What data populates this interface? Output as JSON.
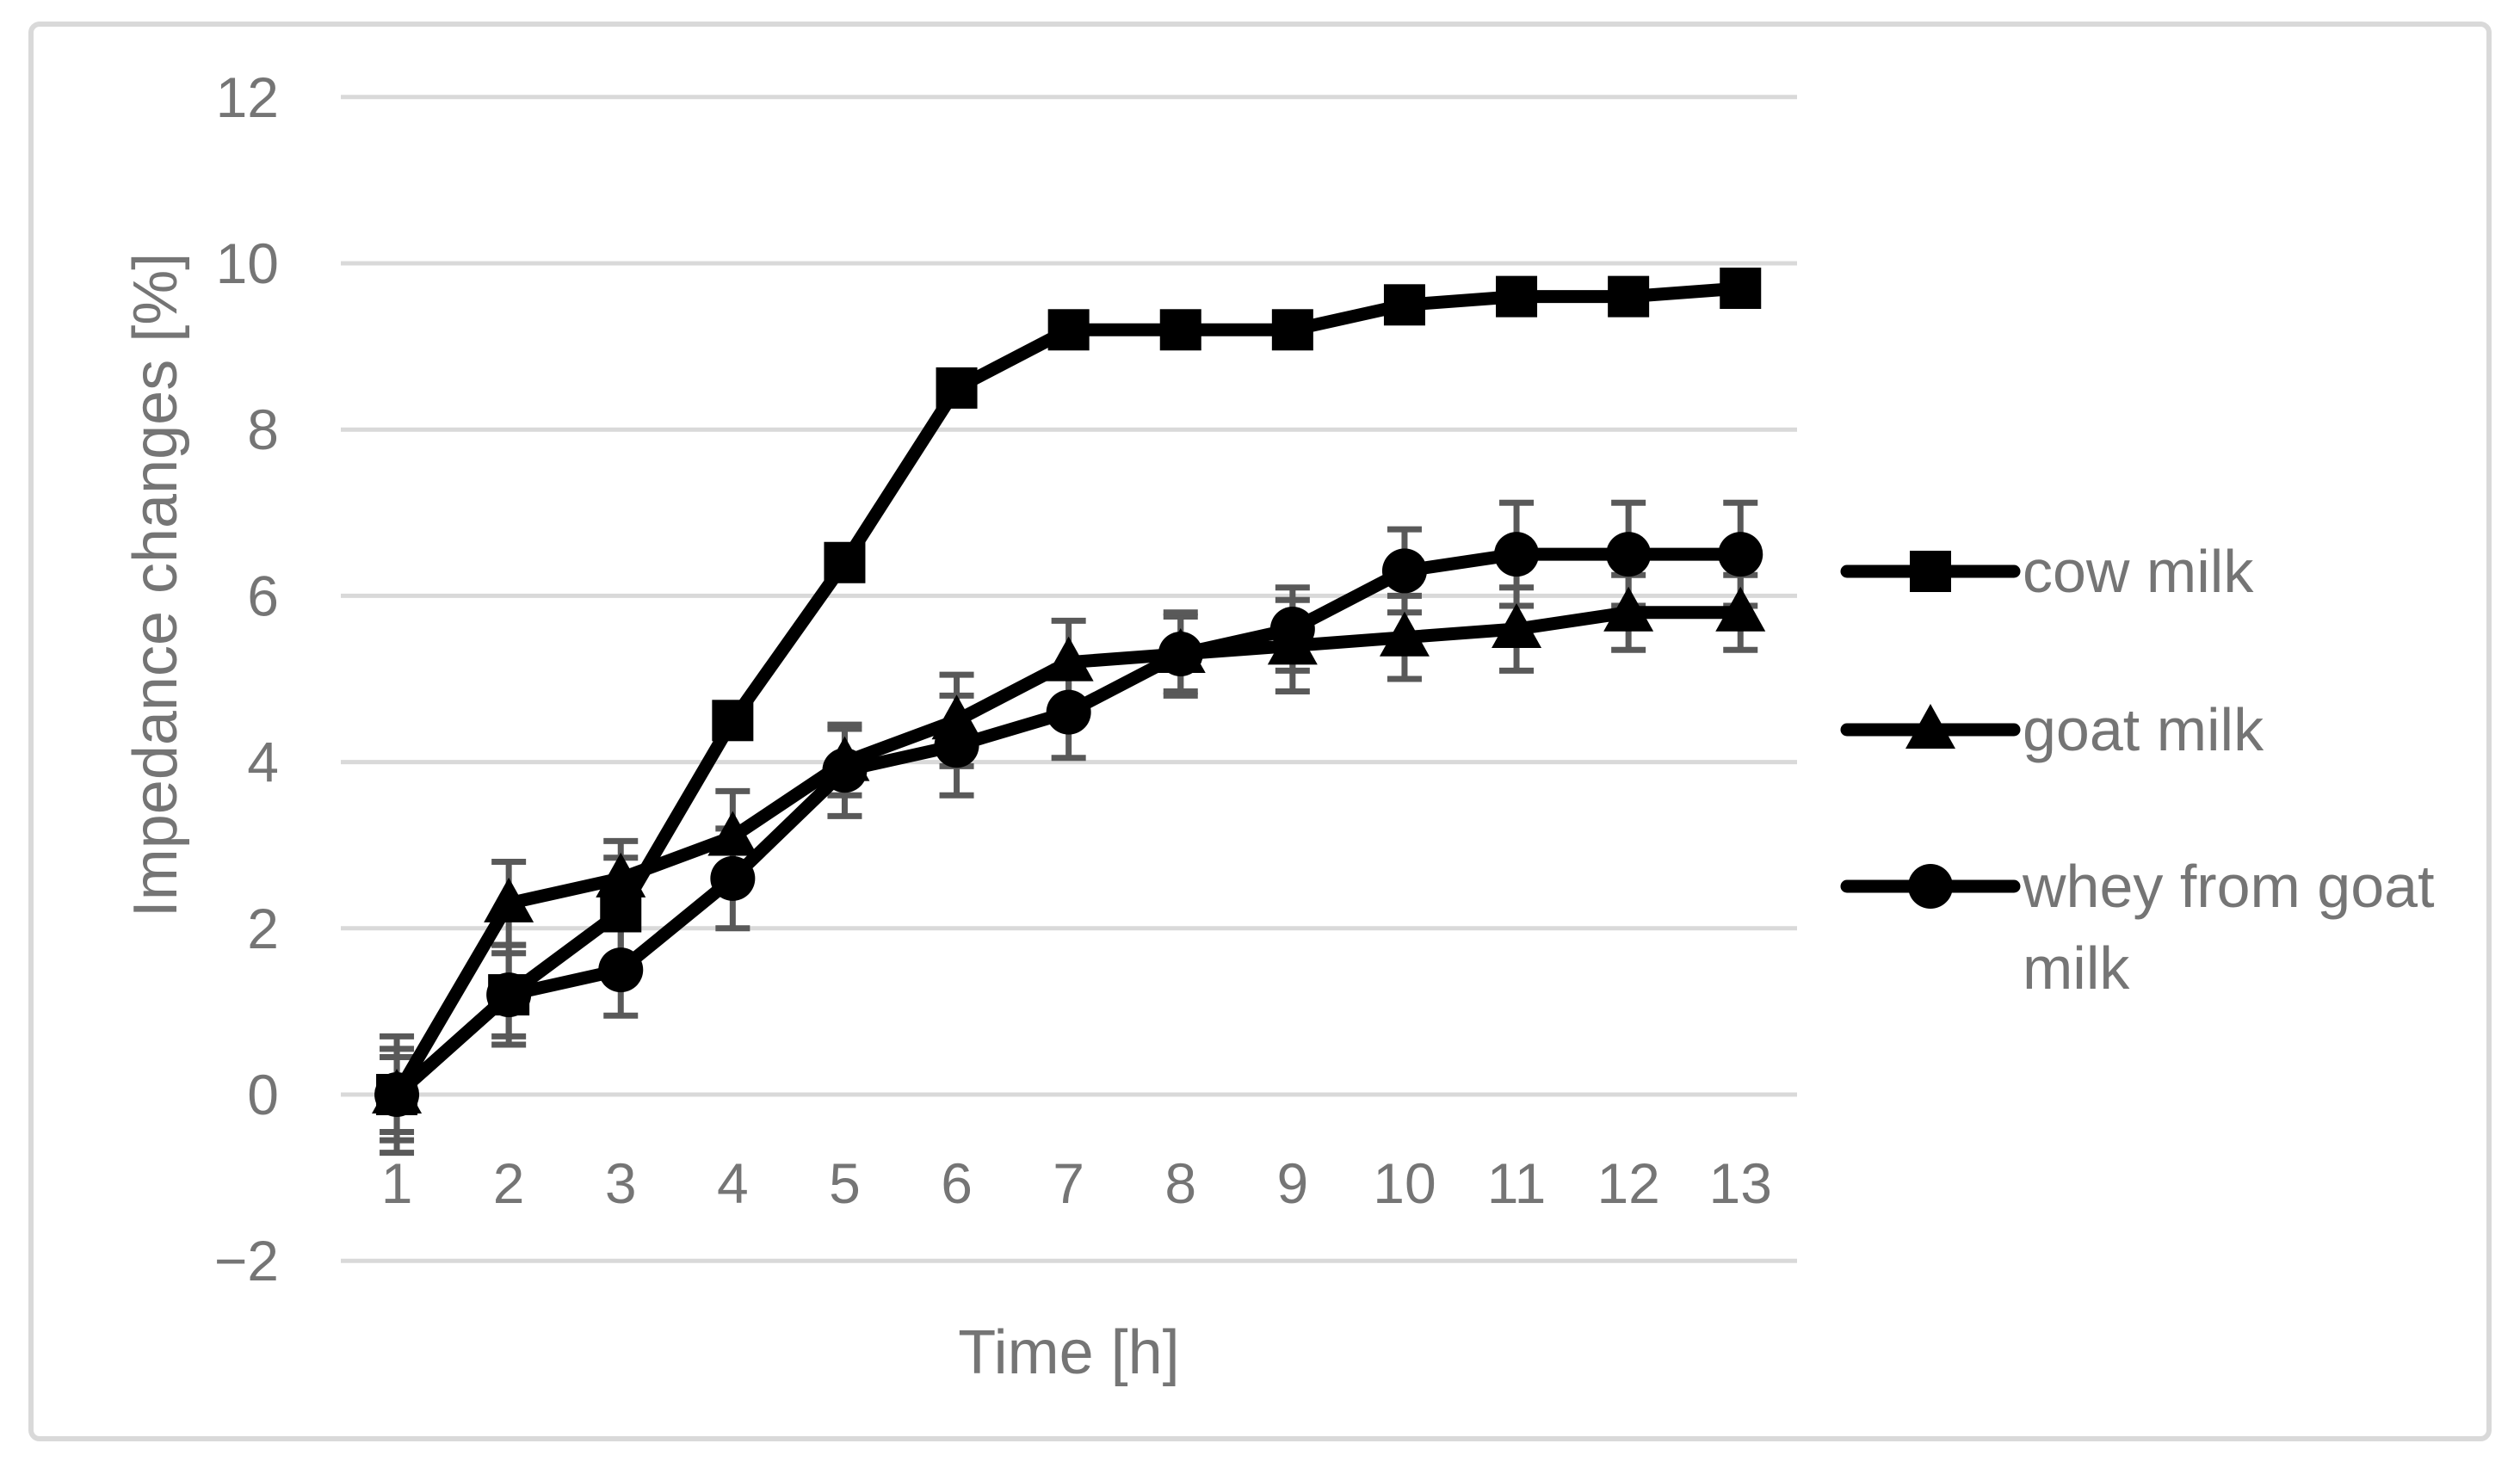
{
  "figure": {
    "background": "#ffffff",
    "border_color": "#d9d9d9"
  },
  "chart_data": {
    "type": "line",
    "title": "",
    "xlabel": "Time [h]",
    "ylabel": "Impedance changes [%]",
    "x": [
      1,
      2,
      3,
      4,
      5,
      6,
      7,
      8,
      9,
      10,
      11,
      12,
      13
    ],
    "ylim": [
      -2,
      12
    ],
    "yticks": [
      12,
      10,
      8,
      6,
      4,
      2,
      0,
      -2
    ],
    "ytick_labels": [
      "12",
      "10",
      "8",
      "6",
      "4",
      "2",
      "0",
      "−2"
    ],
    "xtick_labels": [
      "1",
      "2",
      "3",
      "4",
      "5",
      "6",
      "7",
      "8",
      "9",
      "10",
      "11",
      "12",
      "13"
    ],
    "grid": "horizontal",
    "legend_position": "right",
    "series": [
      {
        "name": "cow milk",
        "marker": "square",
        "legend_lines": [
          "cow milk"
        ],
        "values": [
          0.0,
          1.2,
          2.2,
          4.5,
          6.4,
          8.5,
          9.2,
          9.2,
          9.2,
          9.5,
          9.6,
          9.6,
          9.7
        ],
        "errors": [
          0.55,
          0.6,
          0.65,
          0,
          0,
          0,
          0,
          0,
          0,
          0,
          0,
          0,
          0
        ]
      },
      {
        "name": "goat milk",
        "marker": "triangle",
        "legend_lines": [
          "goat milk"
        ],
        "values": [
          0.0,
          2.3,
          2.6,
          3.1,
          4.0,
          4.5,
          5.2,
          5.3,
          5.4,
          5.5,
          5.6,
          5.8,
          5.8
        ],
        "errors": [
          0.45,
          0.5,
          0.45,
          0.55,
          0.4,
          0.55,
          0.5,
          0.45,
          0.55,
          0.5,
          0.5,
          0.45,
          0.45
        ]
      },
      {
        "name": "whey from goat milk",
        "marker": "circle",
        "legend_lines": [
          "whey from goat",
          "milk"
        ],
        "values": [
          0.0,
          1.2,
          1.5,
          2.6,
          3.9,
          4.2,
          4.6,
          5.3,
          5.6,
          6.3,
          6.5,
          6.5,
          6.5
        ],
        "errors": [
          0.7,
          0.5,
          0.55,
          0.6,
          0.55,
          0.6,
          0.55,
          0.5,
          0.5,
          0.5,
          0.62,
          0.62,
          0.62
        ]
      }
    ],
    "colors": {
      "series_line": "#000000",
      "error_bar": "#595959",
      "gridline": "#d9d9d9",
      "axis_text": "#757575",
      "border": "#d9d9d9",
      "background": "#ffffff"
    }
  }
}
